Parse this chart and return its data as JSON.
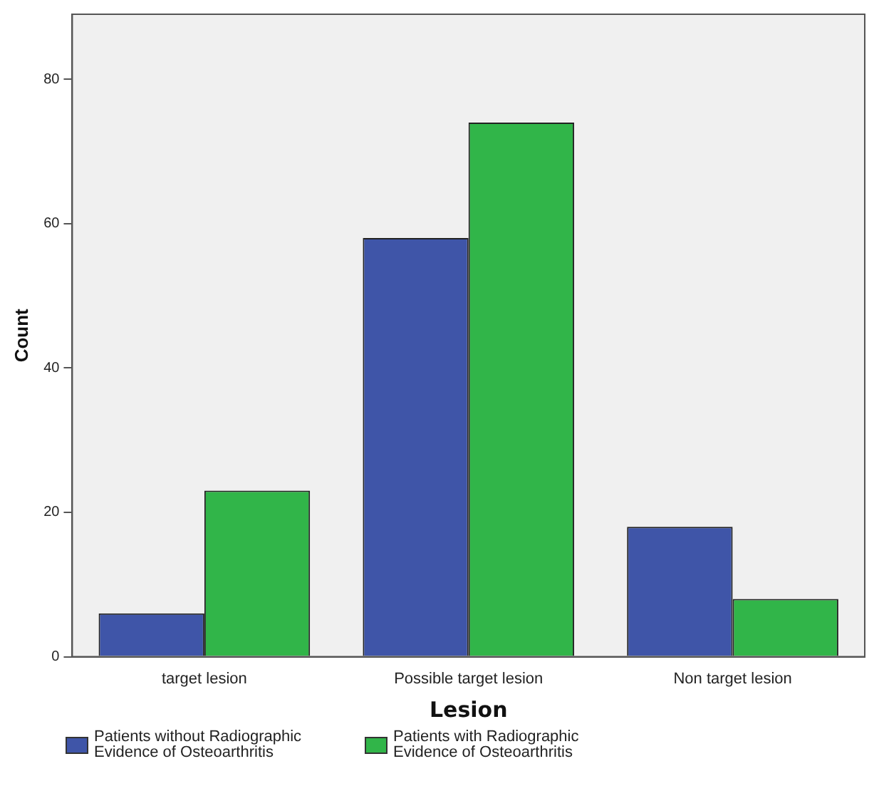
{
  "chart_data": {
    "type": "bar",
    "xlabel": "Lesion",
    "ylabel": "Count",
    "categories": [
      "target lesion",
      "Possible target lesion",
      "Non target lesion"
    ],
    "series": [
      {
        "name": "Patients without Radiographic Evidence of Osteoarthritis",
        "color": "#3f55a8",
        "values": [
          6,
          58,
          18
        ]
      },
      {
        "name": "Patients with Radiographic Evidence of Osteoarthritis",
        "color": "#31b549",
        "values": [
          23,
          74,
          8
        ]
      }
    ],
    "ylim": [
      0,
      89
    ],
    "yticks": [
      0,
      20,
      40,
      60,
      80
    ],
    "grid": false,
    "legend": "bottom"
  }
}
